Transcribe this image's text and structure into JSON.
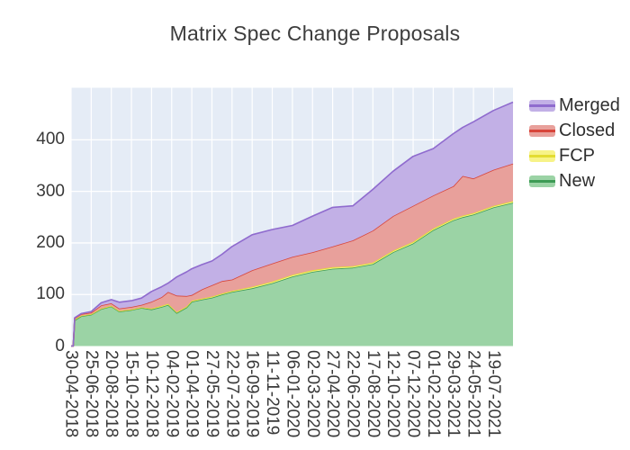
{
  "chart": {
    "title": "Matrix Spec Change Proposals"
  },
  "chart_data": {
    "type": "area",
    "stacked": true,
    "title": "Matrix Spec Change Proposals",
    "xlabel": "",
    "ylabel": "",
    "x_unit": "days since 30-04-2018",
    "xlim": [
      0,
      1230
    ],
    "ylim": [
      0,
      501
    ],
    "grid": true,
    "legend_position": "right",
    "plot_bg": "#e5ecf6",
    "grid_color": "#ffffff",
    "y_ticks": [
      0,
      100,
      200,
      300,
      400
    ],
    "x_ticks": {
      "day_offsets": [
        0,
        56,
        112,
        168,
        224,
        280,
        336,
        392,
        448,
        504,
        560,
        616,
        672,
        728,
        784,
        840,
        896,
        952,
        1008,
        1064,
        1120,
        1176
      ],
      "labels": [
        "30-04-2018",
        "25-06-2018",
        "20-08-2018",
        "15-10-2018",
        "10-12-2018",
        "04-02-2019",
        "01-04-2019",
        "27-05-2019",
        "22-07-2019",
        "16-09-2019",
        "11-11-2019",
        "06-01-2020",
        "02-03-2020",
        "27-04-2020",
        "22-06-2020",
        "17-08-2020",
        "12-10-2020",
        "07-12-2020",
        "01-02-2021",
        "29-03-2021",
        "24-05-2021",
        "19-07-2021"
      ]
    },
    "x": [
      0,
      6,
      10,
      28,
      56,
      84,
      112,
      134,
      168,
      196,
      224,
      252,
      270,
      294,
      322,
      336,
      364,
      392,
      420,
      448,
      504,
      560,
      616,
      672,
      728,
      784,
      840,
      896,
      952,
      1008,
      1064,
      1090,
      1120,
      1176,
      1230
    ],
    "series": [
      {
        "name": "New",
        "line_color": "#3d9b55",
        "fill_color": "#9bd3a5",
        "values": [
          0,
          0,
          50,
          58,
          61,
          72,
          77,
          67,
          70,
          74,
          71,
          76,
          80,
          64,
          75,
          86,
          90,
          94,
          100,
          105,
          112,
          122,
          135,
          144,
          150,
          152,
          159,
          182,
          199,
          225,
          244,
          250,
          255,
          269,
          278
        ]
      },
      {
        "name": "FCP",
        "line_color": "#e3dc32",
        "fill_color": "#f7f388",
        "values": [
          0,
          0,
          2,
          1,
          1,
          1,
          1,
          1,
          1,
          1,
          2,
          2,
          2,
          2,
          2,
          2,
          2,
          2,
          2,
          2,
          3,
          3,
          3,
          3,
          3,
          3,
          3,
          3,
          3,
          3,
          3,
          3,
          3,
          3,
          3
        ]
      },
      {
        "name": "Closed",
        "line_color": "#d8453a",
        "fill_color": "#e8a09b",
        "values": [
          0,
          0,
          2,
          3,
          3,
          6,
          5,
          5,
          5,
          5,
          13,
          17,
          23,
          32,
          20,
          11,
          18,
          22,
          24,
          22,
          32,
          35,
          35,
          35,
          40,
          50,
          62,
          67,
          70,
          64,
          63,
          77,
          67,
          70,
          73
        ]
      },
      {
        "name": "Merged",
        "line_color": "#8f6bce",
        "fill_color": "#c2b0e6",
        "values": [
          0,
          0,
          1,
          1,
          2,
          5,
          7,
          12,
          12,
          13,
          20,
          20,
          17,
          36,
          47,
          51,
          48,
          47,
          52,
          64,
          69,
          66,
          61,
          70,
          76,
          67,
          80,
          87,
          96,
          91,
          102,
          94,
          110,
          115,
          119
        ]
      }
    ]
  }
}
